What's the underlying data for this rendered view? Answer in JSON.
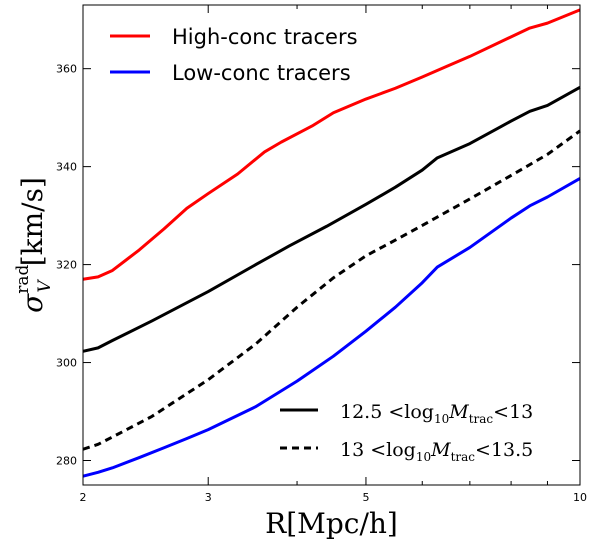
{
  "chart_data": {
    "type": "line",
    "xlabel": "R[Mpc/h]",
    "ylabel": {
      "base": "σ",
      "sup": "rad",
      "sub": "V",
      "unit": "[km/s]"
    },
    "xscale": "log",
    "xlim": [
      2,
      10
    ],
    "ylim": [
      275,
      373
    ],
    "xticks": [
      2,
      3,
      5,
      10
    ],
    "yticks": [
      280,
      300,
      320,
      340,
      360
    ],
    "grid": false,
    "legends": [
      {
        "placement": "upper-left",
        "entries": [
          "High-conc tracers",
          "Low-conc tracers"
        ]
      },
      {
        "placement": "lower-right",
        "entries": [
          {
            "left": "12.5",
            "mid": "log",
            "sub10": "10",
            "M": "M",
            "msub": "trac",
            "right": "13"
          },
          {
            "left": "13",
            "mid": "log",
            "sub10": "10",
            "M": "M",
            "msub": "trac",
            "right": "13.5"
          }
        ]
      }
    ],
    "series": [
      {
        "name": "High-conc tracers",
        "color": "#ff0000",
        "dash": "solid",
        "x": [
          2.0,
          2.1,
          2.2,
          2.4,
          2.6,
          2.8,
          3.0,
          3.3,
          3.6,
          3.8,
          4.2,
          4.5,
          5.0,
          5.5,
          6.0,
          6.5,
          7.0,
          8.0,
          8.5,
          9.0,
          10.0
        ],
        "y": [
          317,
          317.5,
          318.8,
          323,
          327.3,
          331.5,
          334.5,
          338.5,
          343,
          345,
          348.3,
          351,
          353.8,
          356,
          358.3,
          360.5,
          362.5,
          366.5,
          368.3,
          369.3,
          372
        ]
      },
      {
        "name": "Low-conc tracers",
        "color": "#0000ff",
        "dash": "solid",
        "x": [
          2.0,
          2.1,
          2.2,
          2.4,
          2.6,
          2.8,
          3.0,
          3.5,
          4.0,
          4.5,
          5.0,
          5.5,
          6.0,
          6.3,
          7.0,
          8.0,
          8.5,
          9.0,
          10.0
        ],
        "y": [
          276.8,
          277.6,
          278.5,
          280.6,
          282.6,
          284.5,
          286.3,
          291,
          296.2,
          301.3,
          306.4,
          311.3,
          316.3,
          319.5,
          323.5,
          329.5,
          332,
          333.8,
          337.6
        ]
      },
      {
        "name": "12.5 <log10Mtrac< 13",
        "color": "#000000",
        "dash": "solid",
        "x": [
          2.0,
          2.1,
          2.2,
          2.5,
          3.0,
          3.5,
          3.9,
          4.4,
          5.0,
          5.5,
          6.0,
          6.3,
          7.0,
          8.0,
          8.5,
          9.0,
          10.0
        ],
        "y": [
          302.3,
          303,
          304.5,
          308.5,
          314.5,
          320,
          323.8,
          327.8,
          332.3,
          335.8,
          339.3,
          341.8,
          344.7,
          349.3,
          351.3,
          352.5,
          356.2
        ]
      },
      {
        "name": "13 <log10Mtrac< 13.5",
        "color": "#000000",
        "dash": "dashed",
        "x": [
          2.0,
          2.1,
          2.2,
          2.5,
          3.0,
          3.5,
          4.0,
          4.5,
          5.0,
          5.5,
          6.0,
          7.0,
          8.0,
          9.0,
          10.0
        ],
        "y": [
          282.3,
          283.3,
          284.8,
          289,
          296.5,
          303.8,
          311.3,
          317.3,
          321.8,
          325,
          328,
          333.4,
          338.2,
          342.5,
          347.3
        ]
      }
    ]
  }
}
